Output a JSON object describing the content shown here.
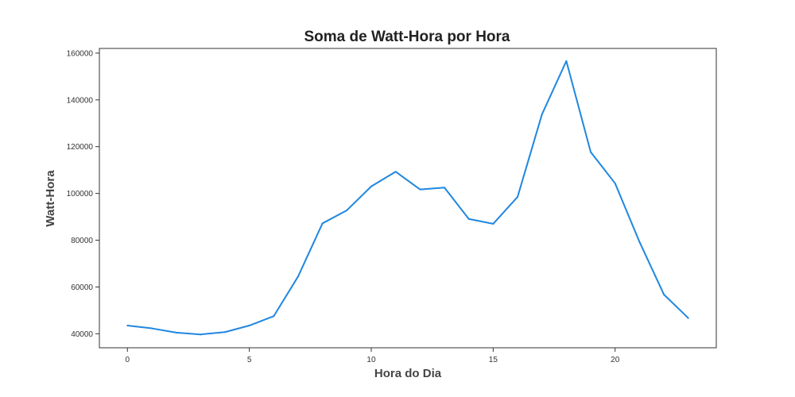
{
  "chart_data": {
    "type": "line",
    "title": "Soma de Watt-Hora por Hora",
    "xlabel": "Hora do Dia",
    "ylabel": "Watt-Hora",
    "x": [
      0,
      1,
      2,
      3,
      4,
      5,
      6,
      7,
      8,
      9,
      10,
      11,
      12,
      13,
      14,
      15,
      16,
      17,
      18,
      19,
      20,
      21,
      22,
      23
    ],
    "series": [
      {
        "values": [
          43500,
          42300,
          40500,
          39700,
          40700,
          43500,
          47500,
          64500,
          87200,
          92800,
          103000,
          109300,
          101700,
          102500,
          89100,
          87000,
          98500,
          133800,
          156600,
          117700,
          104300,
          79300,
          56800,
          46700
        ],
        "color": "#1f87e0"
      }
    ],
    "xlim": [
      -1.15,
      24.15
    ],
    "ylim": [
      34000,
      162000
    ],
    "xticks": [
      0,
      5,
      10,
      15,
      20
    ],
    "yticks": [
      40000,
      60000,
      80000,
      100000,
      120000,
      140000,
      160000
    ],
    "xtick_labels": [
      "0",
      "5",
      "10",
      "15",
      "20"
    ],
    "ytick_labels": [
      "40000",
      "60000",
      "80000",
      "100000",
      "120000",
      "140000",
      "160000"
    ],
    "grid": false,
    "legend": false
  }
}
